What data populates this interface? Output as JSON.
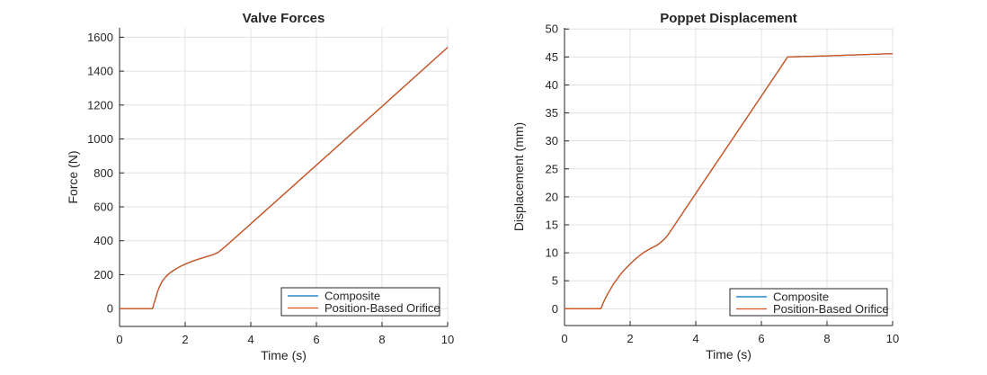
{
  "figure": {
    "background": "#ffffff",
    "axis_color": "#262626",
    "grid_color": "#e0e0e0",
    "text_color": "#262626",
    "series_colors": {
      "composite": "#0072BD",
      "position_based_orifice": "#D95319"
    }
  },
  "chart_data": [
    {
      "type": "line",
      "title": "Valve Forces",
      "xlabel": "Time (s)",
      "ylabel": "Force (N)",
      "xlim": [
        0,
        10
      ],
      "ylim": [
        -105,
        1655
      ],
      "xticks": [
        0,
        2,
        4,
        6,
        8,
        10
      ],
      "yticks": [
        0,
        200,
        400,
        600,
        800,
        1000,
        1200,
        1400,
        1600
      ],
      "grid": true,
      "legend_position": "bottom-right-inside",
      "series": [
        {
          "name": "Composite",
          "color": "#0072BD",
          "points": [
            [
              0,
              0
            ],
            [
              1,
              0
            ],
            [
              1.02,
              8
            ],
            [
              1.05,
              30
            ],
            [
              1.1,
              62
            ],
            [
              1.15,
              95
            ],
            [
              1.2,
              122
            ],
            [
              1.3,
              161
            ],
            [
              1.4,
              186
            ],
            [
              1.5,
              205
            ],
            [
              1.6,
              220
            ],
            [
              1.7,
              232
            ],
            [
              1.8,
              243
            ],
            [
              1.9,
              253
            ],
            [
              2,
              262
            ],
            [
              2.2,
              278
            ],
            [
              2.4,
              291
            ],
            [
              2.6,
              303
            ],
            [
              2.8,
              315
            ],
            [
              2.9,
              322
            ],
            [
              3,
              331
            ],
            [
              3.1,
              346
            ],
            [
              3.2,
              362
            ],
            [
              4,
              500
            ],
            [
              5,
              673
            ],
            [
              6,
              846
            ],
            [
              7,
              1019
            ],
            [
              8,
              1192
            ],
            [
              9,
              1366
            ],
            [
              10,
              1540
            ]
          ]
        },
        {
          "name": "Position-Based Orifice",
          "color": "#D95319",
          "points": [
            [
              0,
              0
            ],
            [
              1,
              0
            ],
            [
              1.02,
              8
            ],
            [
              1.05,
              30
            ],
            [
              1.1,
              62
            ],
            [
              1.15,
              95
            ],
            [
              1.2,
              122
            ],
            [
              1.3,
              161
            ],
            [
              1.4,
              186
            ],
            [
              1.5,
              205
            ],
            [
              1.6,
              220
            ],
            [
              1.7,
              232
            ],
            [
              1.8,
              243
            ],
            [
              1.9,
              253
            ],
            [
              2,
              262
            ],
            [
              2.2,
              278
            ],
            [
              2.4,
              291
            ],
            [
              2.6,
              303
            ],
            [
              2.8,
              315
            ],
            [
              2.9,
              322
            ],
            [
              3,
              331
            ],
            [
              3.1,
              346
            ],
            [
              3.2,
              362
            ],
            [
              4,
              500
            ],
            [
              5,
              673
            ],
            [
              6,
              846
            ],
            [
              7,
              1019
            ],
            [
              8,
              1192
            ],
            [
              9,
              1366
            ],
            [
              10,
              1540
            ]
          ]
        }
      ]
    },
    {
      "type": "line",
      "title": "Poppet Displacement",
      "xlabel": "Time (s)",
      "ylabel": "Displacement (mm)",
      "xlim": [
        0,
        10
      ],
      "ylim": [
        -3,
        50.2
      ],
      "xticks": [
        0,
        2,
        4,
        6,
        8,
        10
      ],
      "yticks": [
        0,
        5,
        10,
        15,
        20,
        25,
        30,
        35,
        40,
        45,
        50
      ],
      "grid": true,
      "legend_position": "bottom-right-inside",
      "series": [
        {
          "name": "Composite",
          "color": "#0072BD",
          "points": [
            [
              0,
              0
            ],
            [
              1.1,
              0
            ],
            [
              1.13,
              0.3
            ],
            [
              1.17,
              0.9
            ],
            [
              1.2,
              1.3
            ],
            [
              1.3,
              2.5
            ],
            [
              1.4,
              3.5
            ],
            [
              1.5,
              4.5
            ],
            [
              1.6,
              5.3
            ],
            [
              1.7,
              6.1
            ],
            [
              1.8,
              6.8
            ],
            [
              1.9,
              7.4
            ],
            [
              2,
              8
            ],
            [
              2.2,
              9.1
            ],
            [
              2.4,
              10
            ],
            [
              2.6,
              10.7
            ],
            [
              2.8,
              11.3
            ],
            [
              2.9,
              11.7
            ],
            [
              3,
              12.2
            ],
            [
              3.1,
              12.8
            ],
            [
              3.2,
              13.6
            ],
            [
              4,
              20.6
            ],
            [
              5,
              29.3
            ],
            [
              6,
              38
            ],
            [
              6.8,
              45
            ],
            [
              8,
              45.2
            ],
            [
              10,
              45.6
            ]
          ]
        },
        {
          "name": "Position-Based Orifice",
          "color": "#D95319",
          "points": [
            [
              0,
              0
            ],
            [
              1.1,
              0
            ],
            [
              1.13,
              0.3
            ],
            [
              1.17,
              0.9
            ],
            [
              1.2,
              1.3
            ],
            [
              1.3,
              2.5
            ],
            [
              1.4,
              3.5
            ],
            [
              1.5,
              4.5
            ],
            [
              1.6,
              5.3
            ],
            [
              1.7,
              6.1
            ],
            [
              1.8,
              6.8
            ],
            [
              1.9,
              7.4
            ],
            [
              2,
              8
            ],
            [
              2.2,
              9.1
            ],
            [
              2.4,
              10
            ],
            [
              2.6,
              10.7
            ],
            [
              2.8,
              11.3
            ],
            [
              2.9,
              11.7
            ],
            [
              3,
              12.2
            ],
            [
              3.1,
              12.8
            ],
            [
              3.2,
              13.6
            ],
            [
              4,
              20.6
            ],
            [
              5,
              29.3
            ],
            [
              6,
              38
            ],
            [
              6.8,
              45
            ],
            [
              8,
              45.2
            ],
            [
              10,
              45.6
            ]
          ]
        }
      ]
    }
  ]
}
